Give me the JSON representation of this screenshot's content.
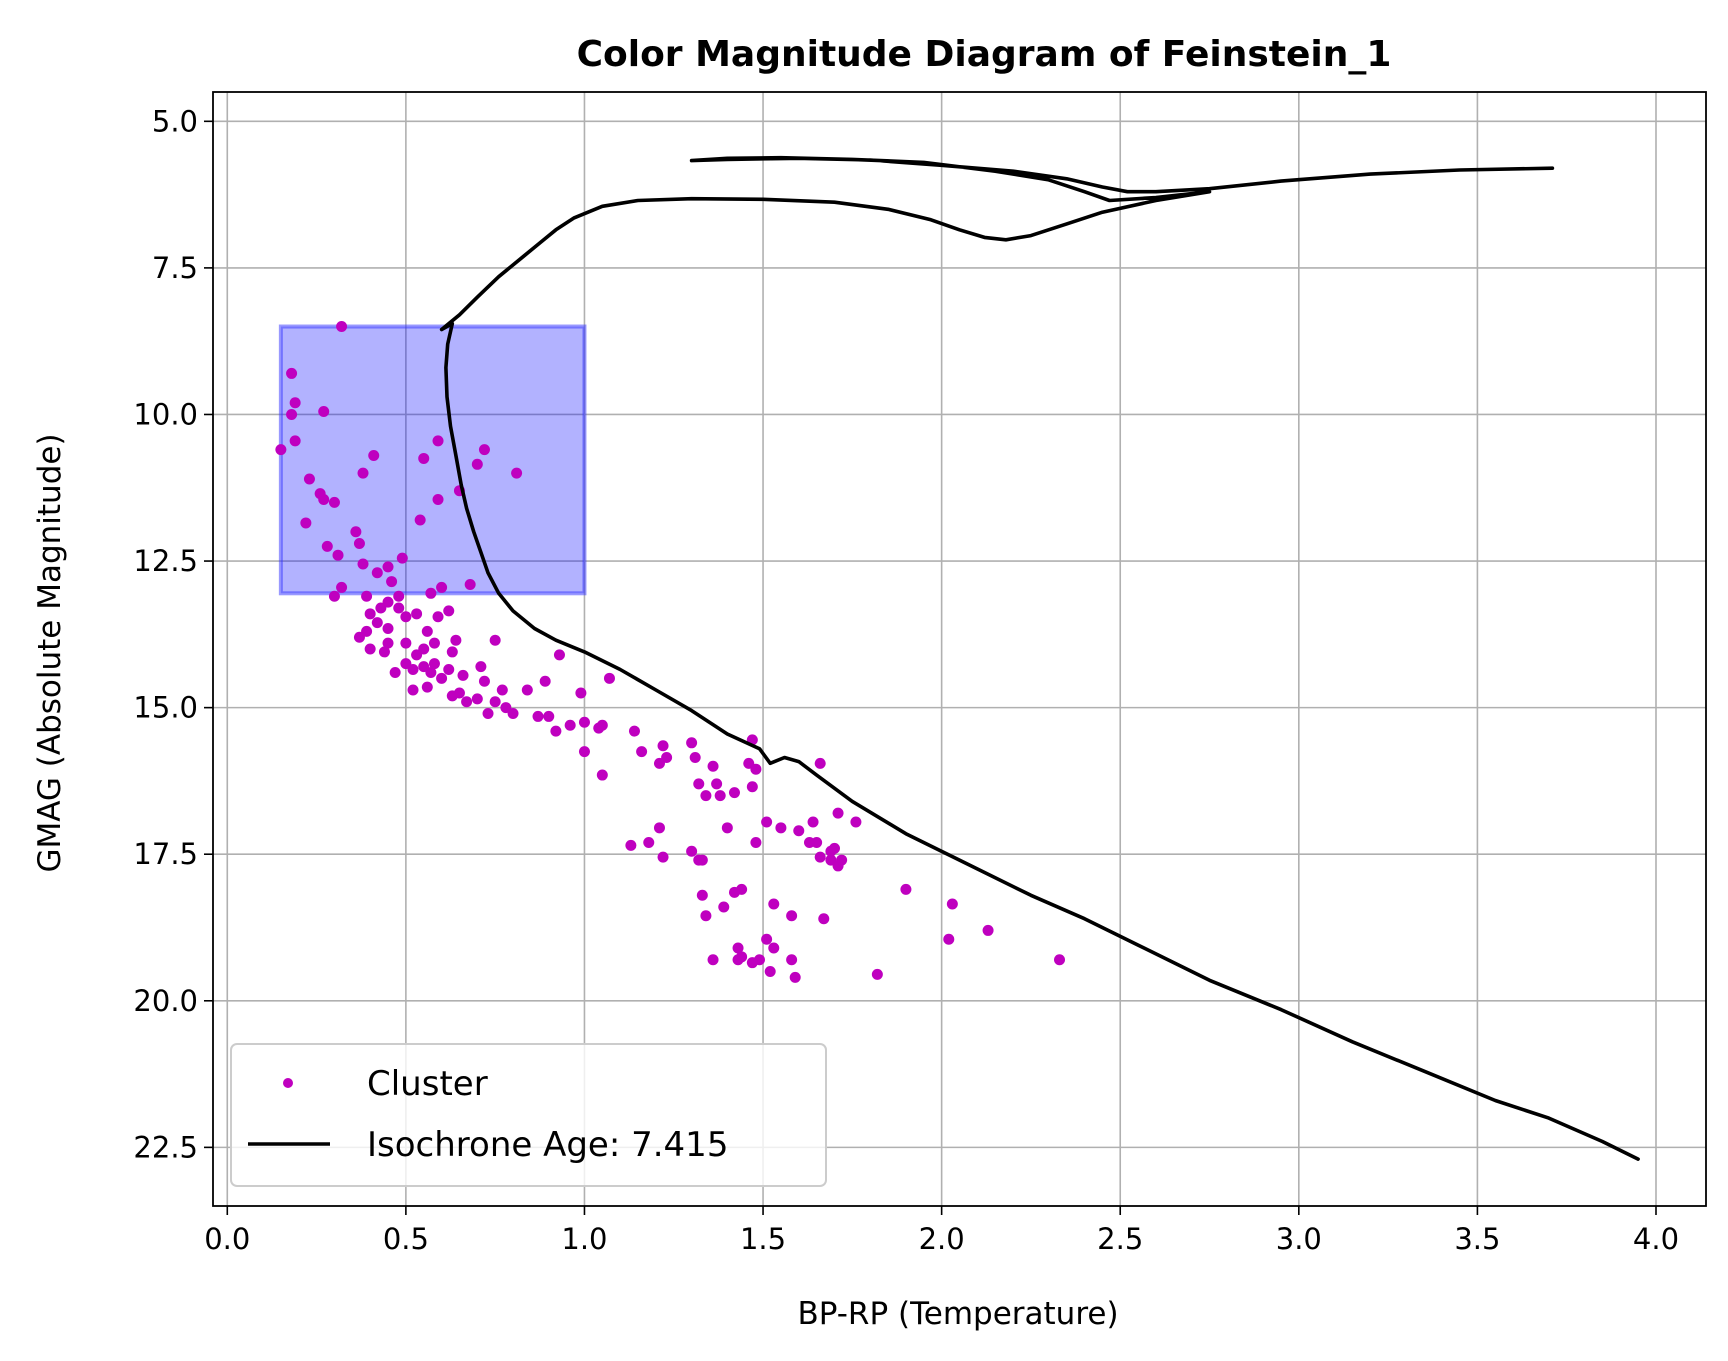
{
  "chart_data": {
    "type": "scatter",
    "title": "Color Magnitude Diagram of Feinstein_1",
    "xlabel": "BP-RP (Temperature)",
    "ylabel": "GMAG (Absolute Magnitude)",
    "xlim": [
      -0.04,
      4.14
    ],
    "ylim": [
      23.5,
      4.5
    ],
    "y_inverted": true,
    "grid": true,
    "legend_position": "lower-left",
    "x_ticks": [
      0.0,
      0.5,
      1.0,
      1.5,
      2.0,
      2.5,
      3.0,
      3.5,
      4.0
    ],
    "x_tick_labels": [
      "0.0",
      "0.5",
      "1.0",
      "1.5",
      "2.0",
      "2.5",
      "3.0",
      "3.5",
      "4.0"
    ],
    "y_ticks": [
      5.0,
      7.5,
      10.0,
      12.5,
      15.0,
      17.5,
      20.0,
      22.5
    ],
    "y_tick_labels": [
      "5.0",
      "7.5",
      "10.0",
      "12.5",
      "15.0",
      "17.5",
      "20.0",
      "22.5"
    ],
    "colors": {
      "cluster": "#bf00bf",
      "isochrone": "#000000",
      "box_fill": "#0000ff",
      "box_edge": "#3333ff",
      "grid": "#b0b0b0"
    },
    "highlight_box": {
      "x0": 0.15,
      "x1": 1.0,
      "y0": 8.5,
      "y1": 13.05
    },
    "series": [
      {
        "name": "Cluster",
        "kind": "scatter",
        "points": [
          [
            0.32,
            8.5
          ],
          [
            0.18,
            9.3
          ],
          [
            0.19,
            9.8
          ],
          [
            0.18,
            10.0
          ],
          [
            0.27,
            9.95
          ],
          [
            0.15,
            10.6
          ],
          [
            0.19,
            10.45
          ],
          [
            0.41,
            10.7
          ],
          [
            0.38,
            11.0
          ],
          [
            0.55,
            10.75
          ],
          [
            0.59,
            10.45
          ],
          [
            0.7,
            10.85
          ],
          [
            0.72,
            10.6
          ],
          [
            0.81,
            11.0
          ],
          [
            0.23,
            11.1
          ],
          [
            0.26,
            11.35
          ],
          [
            0.27,
            11.45
          ],
          [
            0.3,
            11.5
          ],
          [
            0.59,
            11.45
          ],
          [
            0.65,
            11.3
          ],
          [
            0.54,
            11.8
          ],
          [
            0.22,
            11.85
          ],
          [
            0.36,
            12.0
          ],
          [
            0.37,
            12.2
          ],
          [
            0.28,
            12.25
          ],
          [
            0.31,
            12.4
          ],
          [
            0.38,
            12.55
          ],
          [
            0.45,
            12.6
          ],
          [
            0.49,
            12.45
          ],
          [
            0.42,
            12.7
          ],
          [
            0.32,
            12.95
          ],
          [
            0.3,
            13.1
          ],
          [
            0.39,
            13.1
          ],
          [
            0.46,
            12.85
          ],
          [
            0.48,
            13.1
          ],
          [
            0.6,
            12.95
          ],
          [
            0.68,
            12.9
          ],
          [
            0.57,
            13.05
          ],
          [
            0.4,
            13.4
          ],
          [
            0.43,
            13.3
          ],
          [
            0.45,
            13.2
          ],
          [
            0.48,
            13.3
          ],
          [
            0.42,
            13.55
          ],
          [
            0.45,
            13.65
          ],
          [
            0.5,
            13.45
          ],
          [
            0.53,
            13.4
          ],
          [
            0.56,
            13.7
          ],
          [
            0.59,
            13.45
          ],
          [
            0.62,
            13.35
          ],
          [
            0.37,
            13.8
          ],
          [
            0.39,
            13.7
          ],
          [
            0.4,
            14.0
          ],
          [
            0.45,
            13.9
          ],
          [
            0.44,
            14.05
          ],
          [
            0.5,
            13.9
          ],
          [
            0.53,
            14.1
          ],
          [
            0.55,
            14.0
          ],
          [
            0.58,
            13.9
          ],
          [
            0.63,
            14.05
          ],
          [
            0.64,
            13.85
          ],
          [
            0.75,
            13.85
          ],
          [
            0.93,
            14.1
          ],
          [
            0.47,
            14.4
          ],
          [
            0.5,
            14.25
          ],
          [
            0.52,
            14.35
          ],
          [
            0.55,
            14.3
          ],
          [
            0.57,
            14.4
          ],
          [
            0.58,
            14.25
          ],
          [
            0.6,
            14.5
          ],
          [
            0.62,
            14.35
          ],
          [
            0.66,
            14.45
          ],
          [
            0.71,
            14.3
          ],
          [
            0.72,
            14.55
          ],
          [
            0.77,
            14.7
          ],
          [
            0.89,
            14.55
          ],
          [
            1.07,
            14.5
          ],
          [
            0.52,
            14.7
          ],
          [
            0.56,
            14.65
          ],
          [
            0.63,
            14.8
          ],
          [
            0.65,
            14.75
          ],
          [
            0.67,
            14.9
          ],
          [
            0.7,
            14.85
          ],
          [
            0.73,
            15.1
          ],
          [
            0.75,
            14.9
          ],
          [
            0.78,
            15.0
          ],
          [
            0.8,
            15.1
          ],
          [
            0.84,
            14.7
          ],
          [
            0.87,
            15.15
          ],
          [
            0.9,
            15.15
          ],
          [
            0.92,
            15.4
          ],
          [
            0.96,
            15.3
          ],
          [
            0.99,
            14.75
          ],
          [
            1.0,
            15.25
          ],
          [
            1.04,
            15.35
          ],
          [
            1.05,
            15.3
          ],
          [
            1.14,
            15.4
          ],
          [
            1.0,
            15.75
          ],
          [
            1.05,
            16.15
          ],
          [
            1.16,
            15.75
          ],
          [
            1.21,
            15.95
          ],
          [
            1.23,
            15.85
          ],
          [
            1.22,
            15.65
          ],
          [
            1.3,
            15.6
          ],
          [
            1.31,
            15.85
          ],
          [
            1.36,
            16.0
          ],
          [
            1.32,
            16.3
          ],
          [
            1.37,
            16.3
          ],
          [
            1.34,
            16.5
          ],
          [
            1.38,
            16.5
          ],
          [
            1.42,
            16.45
          ],
          [
            1.47,
            16.35
          ],
          [
            1.46,
            15.95
          ],
          [
            1.48,
            16.05
          ],
          [
            1.47,
            15.55
          ],
          [
            1.66,
            15.95
          ],
          [
            1.13,
            17.35
          ],
          [
            1.18,
            17.3
          ],
          [
            1.21,
            17.05
          ],
          [
            1.22,
            17.55
          ],
          [
            1.3,
            17.45
          ],
          [
            1.32,
            17.6
          ],
          [
            1.33,
            17.6
          ],
          [
            1.4,
            17.05
          ],
          [
            1.48,
            17.3
          ],
          [
            1.51,
            16.95
          ],
          [
            1.55,
            17.05
          ],
          [
            1.6,
            17.1
          ],
          [
            1.63,
            17.3
          ],
          [
            1.64,
            16.95
          ],
          [
            1.65,
            17.3
          ],
          [
            1.66,
            17.55
          ],
          [
            1.69,
            17.45
          ],
          [
            1.7,
            17.4
          ],
          [
            1.69,
            17.6
          ],
          [
            1.71,
            17.7
          ],
          [
            1.72,
            17.6
          ],
          [
            1.71,
            16.8
          ],
          [
            1.76,
            16.95
          ],
          [
            1.33,
            18.2
          ],
          [
            1.34,
            18.55
          ],
          [
            1.39,
            18.4
          ],
          [
            1.42,
            18.15
          ],
          [
            1.44,
            18.1
          ],
          [
            1.53,
            18.35
          ],
          [
            1.58,
            18.55
          ],
          [
            1.67,
            18.6
          ],
          [
            1.9,
            18.1
          ],
          [
            2.03,
            18.35
          ],
          [
            1.43,
            19.1
          ],
          [
            1.44,
            19.25
          ],
          [
            1.49,
            19.3
          ],
          [
            1.51,
            18.95
          ],
          [
            1.53,
            19.1
          ],
          [
            1.58,
            19.3
          ],
          [
            1.36,
            19.3
          ],
          [
            1.43,
            19.3
          ],
          [
            1.47,
            19.35
          ],
          [
            1.52,
            19.5
          ],
          [
            1.59,
            19.6
          ],
          [
            1.82,
            19.55
          ],
          [
            2.02,
            18.95
          ],
          [
            2.13,
            18.8
          ],
          [
            2.33,
            19.3
          ]
        ]
      },
      {
        "name": "Isochrone Age: 7.415",
        "kind": "line",
        "points": [
          [
            3.95,
            22.7
          ],
          [
            3.85,
            22.4
          ],
          [
            3.7,
            22.0
          ],
          [
            3.55,
            21.7
          ],
          [
            3.35,
            21.2
          ],
          [
            3.15,
            20.7
          ],
          [
            2.95,
            20.15
          ],
          [
            2.75,
            19.65
          ],
          [
            2.55,
            19.05
          ],
          [
            2.4,
            18.6
          ],
          [
            2.25,
            18.2
          ],
          [
            2.05,
            17.6
          ],
          [
            1.9,
            17.15
          ],
          [
            1.75,
            16.6
          ],
          [
            1.65,
            16.15
          ],
          [
            1.6,
            15.92
          ],
          [
            1.56,
            15.85
          ],
          [
            1.52,
            15.95
          ],
          [
            1.49,
            15.7
          ],
          [
            1.4,
            15.45
          ],
          [
            1.3,
            15.05
          ],
          [
            1.2,
            14.7
          ],
          [
            1.1,
            14.35
          ],
          [
            1.0,
            14.05
          ],
          [
            0.92,
            13.85
          ],
          [
            0.86,
            13.65
          ],
          [
            0.8,
            13.35
          ],
          [
            0.76,
            13.05
          ],
          [
            0.73,
            12.7
          ],
          [
            0.71,
            12.35
          ],
          [
            0.69,
            12.0
          ],
          [
            0.67,
            11.6
          ],
          [
            0.655,
            11.2
          ],
          [
            0.64,
            10.7
          ],
          [
            0.625,
            10.2
          ],
          [
            0.615,
            9.7
          ],
          [
            0.612,
            9.2
          ],
          [
            0.617,
            8.8
          ],
          [
            0.63,
            8.45
          ],
          [
            0.6,
            8.55
          ],
          [
            0.65,
            8.3
          ],
          [
            0.7,
            8.0
          ],
          [
            0.76,
            7.65
          ],
          [
            0.83,
            7.3
          ],
          [
            0.88,
            7.05
          ],
          [
            0.92,
            6.85
          ],
          [
            0.97,
            6.65
          ],
          [
            1.05,
            6.45
          ],
          [
            1.15,
            6.35
          ],
          [
            1.3,
            6.32
          ],
          [
            1.5,
            6.33
          ],
          [
            1.7,
            6.38
          ],
          [
            1.85,
            6.5
          ],
          [
            1.97,
            6.68
          ],
          [
            2.05,
            6.85
          ],
          [
            2.12,
            6.98
          ],
          [
            2.18,
            7.02
          ],
          [
            2.25,
            6.95
          ],
          [
            2.35,
            6.75
          ],
          [
            2.45,
            6.55
          ],
          [
            2.6,
            6.35
          ],
          [
            2.75,
            6.2
          ],
          [
            2.6,
            6.3
          ],
          [
            2.47,
            6.35
          ],
          [
            2.4,
            6.2
          ],
          [
            2.3,
            6.0
          ],
          [
            2.15,
            5.85
          ],
          [
            1.95,
            5.7
          ],
          [
            1.75,
            5.65
          ],
          [
            1.55,
            5.62
          ],
          [
            1.4,
            5.63
          ],
          [
            1.3,
            5.67
          ],
          [
            1.4,
            5.65
          ],
          [
            1.6,
            5.63
          ],
          [
            1.8,
            5.66
          ],
          [
            2.0,
            5.75
          ],
          [
            2.2,
            5.85
          ],
          [
            2.35,
            5.98
          ],
          [
            2.45,
            6.12
          ],
          [
            2.52,
            6.2
          ],
          [
            2.6,
            6.2
          ],
          [
            2.75,
            6.15
          ],
          [
            2.95,
            6.02
          ],
          [
            3.2,
            5.9
          ],
          [
            3.45,
            5.83
          ],
          [
            3.71,
            5.8
          ]
        ]
      }
    ]
  }
}
